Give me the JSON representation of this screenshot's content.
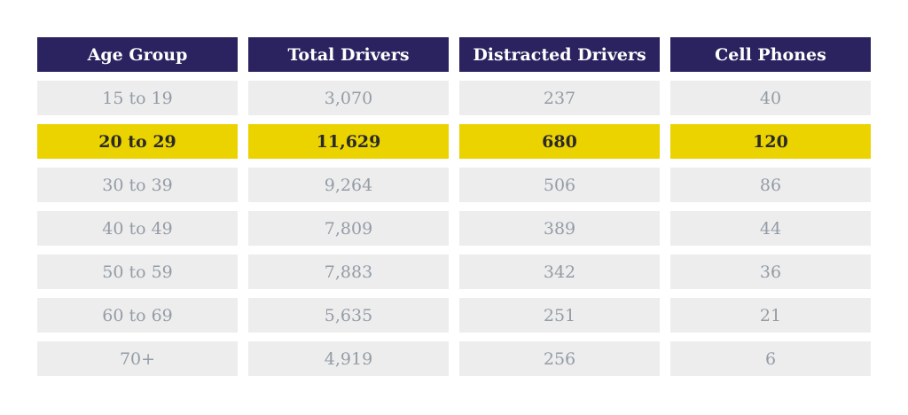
{
  "chart_data": {
    "type": "table",
    "columns": [
      "Age Group",
      "Total Drivers",
      "Distracted Drivers",
      "Cell Phones"
    ],
    "rows": [
      [
        "15 to 19",
        "3,070",
        "237",
        "40"
      ],
      [
        "20 to 29",
        "11,629",
        "680",
        "120"
      ],
      [
        "30 to 39",
        "9,264",
        "506",
        "86"
      ],
      [
        "40 to 49",
        "7,809",
        "389",
        "44"
      ],
      [
        "50 to 59",
        "7,883",
        "342",
        "36"
      ],
      [
        "60 to 69",
        "5,635",
        "251",
        "21"
      ],
      [
        "70+",
        "4,919",
        "256",
        "6"
      ]
    ],
    "highlighted_row": 1,
    "colors": {
      "header_bg": "#2a2360",
      "header_text": "#ffffff",
      "row_bg": "#ededed",
      "row_text": "#949ca6",
      "highlight_bg": "#ebd300",
      "highlight_text": "#2a2a2a"
    }
  }
}
